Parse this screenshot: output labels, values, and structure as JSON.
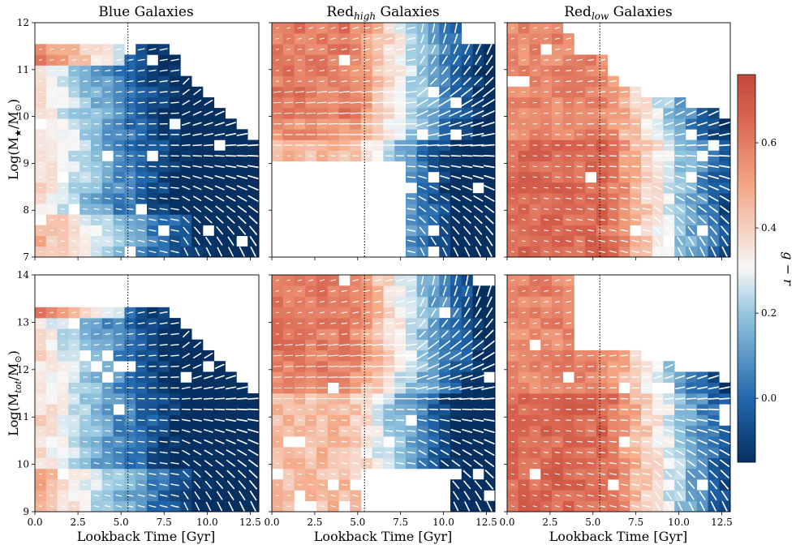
{
  "chart_data": {
    "type": "heatmap",
    "panel_titles": {
      "blue": "Blue Galaxies",
      "red_high_prefix": "Red",
      "red_high_sub": "high",
      "red_low_prefix": "Red",
      "red_low_sub": "low",
      "suffix": " Galaxies"
    },
    "xlabel": "Lookback Time [Gyr]",
    "xlim": [
      0,
      13
    ],
    "xticks": [
      "0.0",
      "2.5",
      "5.0",
      "7.5",
      "10.0",
      "12.5"
    ],
    "xtick_values": [
      0,
      2.5,
      5,
      7.5,
      10,
      12.5
    ],
    "rows": [
      {
        "ylabel_main": "Log(M",
        "ylabel_sub": "★",
        "ylabel_rest": "/M",
        "ylabel_sun": "⊙",
        "ylabel_close": ")",
        "ylim": [
          7,
          12
        ],
        "yticks": [
          "7",
          "8",
          "9",
          "10",
          "11",
          "12"
        ],
        "ytick_values": [
          7,
          8,
          9,
          10,
          11,
          12
        ]
      },
      {
        "ylabel_main": "Log(M",
        "ylabel_sub": "tot",
        "ylabel_rest": "/M",
        "ylabel_sun": "⊙",
        "ylabel_close": ")",
        "ylim": [
          9,
          14
        ],
        "yticks": [
          "9",
          "10",
          "11",
          "12",
          "13",
          "14"
        ],
        "ytick_values": [
          9,
          10,
          11,
          12,
          13,
          14
        ]
      }
    ],
    "vline_x": 5.4,
    "colorbar": {
      "label": "g − r",
      "range": [
        -0.15,
        0.76
      ],
      "ticks": [
        "0.0",
        "0.2",
        "0.4",
        "0.6"
      ],
      "tick_values": [
        0.0,
        0.2,
        0.4,
        0.6
      ],
      "colors": {
        "low": "#053061",
        "mid_low": "#2166ac",
        "blue_light": "#92c5de",
        "center": "#f7f7f7",
        "peach": "#f4a582",
        "high": "#d6604d",
        "top": "#c44a3c"
      }
    },
    "grid": {
      "x_bins": 20,
      "y_bins": 22,
      "note": "cell colors = median g-r per (lookback time, mass) bin; arrows = mean mass-growth vector field"
    }
  }
}
